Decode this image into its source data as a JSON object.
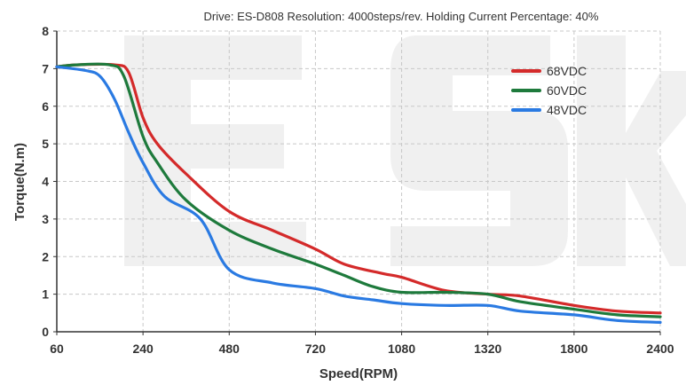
{
  "chart_data": {
    "type": "line",
    "title": "Drive: ES-D808 Resolution: 4000steps/rev. Holding Current Percentage: 40%",
    "xlabel": "Speed(RPM)",
    "ylabel": "Torque(N.m)",
    "x_tick_labels": [
      "60",
      "240",
      "480",
      "720",
      "1080",
      "1320",
      "1800",
      "2400"
    ],
    "y_tick_labels": [
      "0",
      "1",
      "2",
      "3",
      "4",
      "5",
      "6",
      "7",
      "8"
    ],
    "ylim": [
      0,
      8
    ],
    "grid": true,
    "legend_position": "top-right",
    "watermark": "ESK",
    "series": [
      {
        "name": "68VDC",
        "color": "#d42a2a",
        "points": [
          [
            60,
            7.05
          ],
          [
            100,
            7.1
          ],
          [
            180,
            7.1
          ],
          [
            210,
            6.9
          ],
          [
            240,
            5.7
          ],
          [
            280,
            5.0
          ],
          [
            360,
            4.2
          ],
          [
            480,
            3.2
          ],
          [
            600,
            2.7
          ],
          [
            720,
            2.2
          ],
          [
            840,
            1.8
          ],
          [
            1000,
            1.55
          ],
          [
            1080,
            1.45
          ],
          [
            1200,
            1.1
          ],
          [
            1320,
            1.0
          ],
          [
            1500,
            0.95
          ],
          [
            1800,
            0.7
          ],
          [
            2100,
            0.55
          ],
          [
            2400,
            0.5
          ]
        ]
      },
      {
        "name": "60VDC",
        "color": "#1e7a3c",
        "points": [
          [
            60,
            7.05
          ],
          [
            100,
            7.1
          ],
          [
            170,
            7.1
          ],
          [
            200,
            6.8
          ],
          [
            240,
            5.2
          ],
          [
            280,
            4.5
          ],
          [
            360,
            3.5
          ],
          [
            480,
            2.7
          ],
          [
            600,
            2.2
          ],
          [
            720,
            1.8
          ],
          [
            840,
            1.5
          ],
          [
            960,
            1.2
          ],
          [
            1080,
            1.05
          ],
          [
            1200,
            1.05
          ],
          [
            1320,
            1.0
          ],
          [
            1500,
            0.8
          ],
          [
            1800,
            0.6
          ],
          [
            2100,
            0.45
          ],
          [
            2400,
            0.4
          ]
        ]
      },
      {
        "name": "48VDC",
        "color": "#2a7ae2",
        "points": [
          [
            60,
            7.05
          ],
          [
            120,
            6.95
          ],
          [
            150,
            6.8
          ],
          [
            180,
            6.2
          ],
          [
            210,
            5.3
          ],
          [
            240,
            4.5
          ],
          [
            300,
            3.6
          ],
          [
            400,
            3.0
          ],
          [
            480,
            1.65
          ],
          [
            600,
            1.3
          ],
          [
            720,
            1.15
          ],
          [
            840,
            0.95
          ],
          [
            960,
            0.85
          ],
          [
            1080,
            0.75
          ],
          [
            1200,
            0.7
          ],
          [
            1320,
            0.7
          ],
          [
            1500,
            0.55
          ],
          [
            1800,
            0.45
          ],
          [
            2100,
            0.3
          ],
          [
            2400,
            0.25
          ]
        ]
      }
    ]
  }
}
